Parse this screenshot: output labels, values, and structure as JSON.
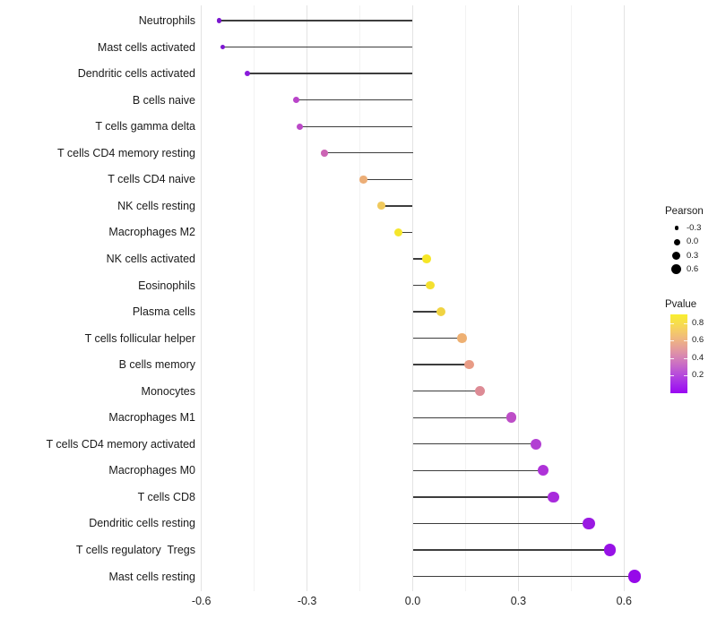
{
  "chart_data": {
    "type": "scatter",
    "variant": "lollipop",
    "orientation": "horizontal",
    "title": "",
    "xlabel": "",
    "ylabel": "",
    "categories": [
      "Neutrophils",
      "Mast cells activated",
      "Dendritic cells activated",
      "B cells naive",
      "T cells gamma delta",
      "T cells CD4 memory resting",
      "T cells CD4 naive",
      "NK cells resting",
      "Macrophages M2",
      "NK cells activated",
      "Eosinophils",
      "Plasma cells",
      "T cells follicular helper",
      "B cells memory",
      "Monocytes",
      "Macrophages M1",
      "T cells CD4 memory activated",
      "Macrophages M0",
      "T cells CD8",
      "Dendritic cells resting",
      "T cells regulatory  Tregs",
      "Mast cells resting"
    ],
    "series": [
      {
        "name": "Pearson",
        "values": [
          -0.55,
          -0.54,
          -0.47,
          -0.33,
          -0.32,
          -0.25,
          -0.14,
          -0.09,
          -0.04,
          0.04,
          0.05,
          0.08,
          0.14,
          0.16,
          0.19,
          0.28,
          0.35,
          0.37,
          0.4,
          0.5,
          0.56,
          0.63
        ]
      }
    ],
    "point_colors": [
      "#7a16cf",
      "#7d17d1",
      "#8a1bdb",
      "#b944c9",
      "#bb49c7",
      "#cc64b4",
      "#ecae77",
      "#f0c95c",
      "#f5e62b",
      "#f6e626",
      "#f4e02f",
      "#f0d342",
      "#eeb072",
      "#e89b85",
      "#dd8b95",
      "#bd4ec7",
      "#b23fd3",
      "#ae32d8",
      "#a82bdc",
      "#9a1ae2",
      "#9712e6",
      "#9609e9"
    ],
    "x_ticks": [
      "-0.6",
      "-0.3",
      "0.0",
      "0.3",
      "0.6"
    ],
    "x_minor_gridlines": [
      -0.45,
      -0.15,
      0.15,
      0.45
    ],
    "xlim": [
      -0.61,
      0.69
    ],
    "grid": "vertical major and minor gridlines only, white background",
    "legend_position": "right",
    "size_legend": {
      "title": "Pearson",
      "labels": [
        "-0.3",
        "0.0",
        "0.3",
        "0.6"
      ],
      "values": [
        -0.3,
        0.0,
        0.3,
        0.6
      ]
    },
    "color_legend": {
      "title": "Pvalue",
      "tick_labels": [
        "0.8",
        "0.6",
        "0.4",
        "0.2"
      ],
      "tick_values": [
        0.8,
        0.6,
        0.4,
        0.2
      ],
      "domain": [
        0.0,
        0.9
      ],
      "gradient_top_to_bottom": [
        "#f8ee2e",
        "#f7dd4d",
        "#f4c96a",
        "#eeb284",
        "#e39a9e",
        "#d581b6",
        "#c465cb",
        "#b447dd",
        "#a527ea",
        "#9a07f2"
      ]
    }
  },
  "colors": {
    "background": "#ffffff",
    "stem": "#3d3d3d",
    "grid_major": "#e3e3e3",
    "grid_minor": "#f2f2f2",
    "axis_text": "#262626",
    "legend_dot": "#000000"
  }
}
